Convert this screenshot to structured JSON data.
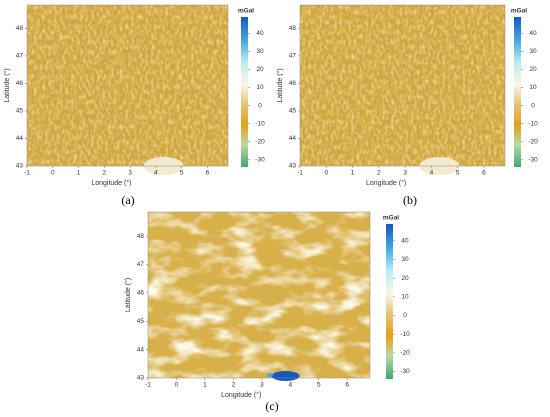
{
  "panels": [
    {
      "caption": "(a)",
      "x_label": "Longitude (°)",
      "y_label": "Latitude (°)",
      "x_ticks": [
        "-1",
        "0",
        "1",
        "2",
        "3",
        "4",
        "5",
        "6"
      ],
      "y_ticks": [
        "43",
        "44",
        "45",
        "46",
        "47",
        "48"
      ],
      "colorbar": {
        "title": "mGal",
        "ticks": [
          "40",
          "30",
          "20",
          "10",
          "0",
          "-10",
          "-20",
          "-30"
        ]
      }
    },
    {
      "caption": "(b)",
      "x_label": "Longitude (°)",
      "y_label": "Latitude (°)",
      "x_ticks": [
        "-1",
        "0",
        "1",
        "2",
        "3",
        "4",
        "5",
        "6"
      ],
      "y_ticks": [
        "43",
        "44",
        "45",
        "46",
        "47",
        "48"
      ],
      "colorbar": {
        "title": "mGal",
        "ticks": [
          "40",
          "30",
          "20",
          "10",
          "0",
          "-10",
          "-20",
          "-30"
        ]
      }
    },
    {
      "caption": "(c)",
      "x_label": "Longitude (°)",
      "y_label": "Latitude (°)",
      "x_ticks": [
        "-1",
        "0",
        "1",
        "2",
        "3",
        "4",
        "5",
        "6"
      ],
      "y_ticks": [
        "43",
        "44",
        "45",
        "46",
        "47",
        "48"
      ],
      "colorbar": {
        "title": "mGal",
        "ticks": [
          "40",
          "30",
          "20",
          "10",
          "0",
          "-10",
          "-20",
          "-30"
        ]
      }
    }
  ]
}
